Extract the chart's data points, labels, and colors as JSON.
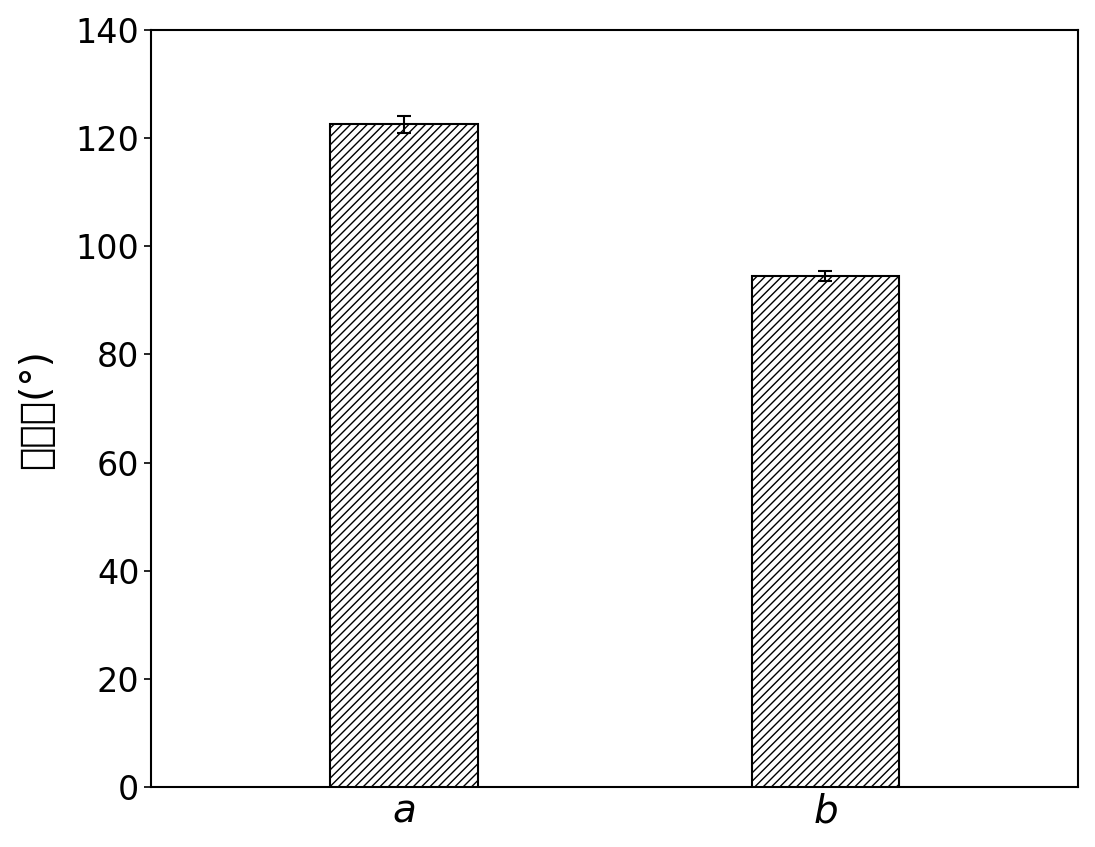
{
  "categories": [
    "a",
    "b"
  ],
  "values": [
    122.5,
    94.5
  ],
  "errors": [
    1.5,
    1.0
  ],
  "ylabel": "接触角(°)",
  "ylim": [
    0,
    140
  ],
  "yticks": [
    0,
    20,
    40,
    60,
    80,
    100,
    120,
    140
  ],
  "bar_width": 0.35,
  "hatch_pattern": "////",
  "bar_facecolor": "#ffffff",
  "bar_edgecolor": "#000000",
  "error_color": "#000000",
  "ylabel_fontsize": 28,
  "tick_fontsize": 24,
  "xlabel_fontsize": 28,
  "background_color": "#ffffff",
  "figure_background": "#ffffff"
}
